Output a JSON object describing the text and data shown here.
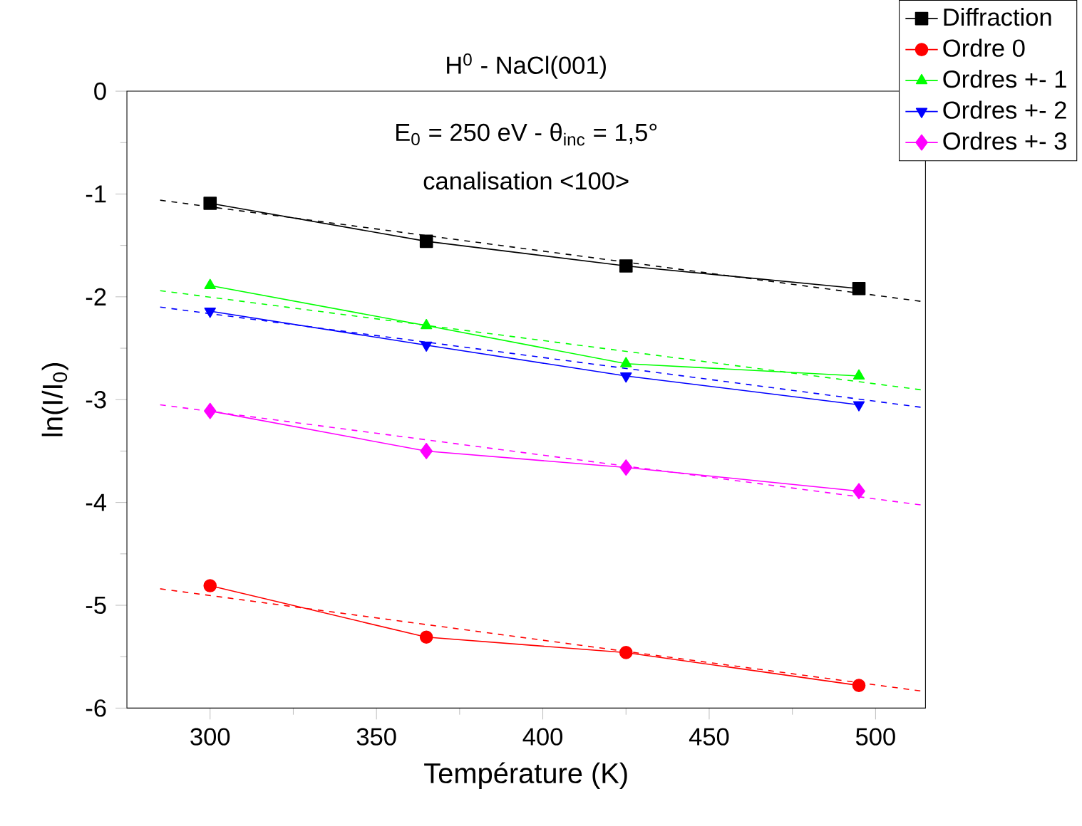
{
  "chart_data": {
    "type": "line",
    "title": "H$^{0}$ - NaCl(001)",
    "subtitle": "E$_{0}$ = 250 eV - θ$_{inc}$ = 1,5°",
    "annotations": [
      "canalisation <100>"
    ],
    "xlabel": "Température (K)",
    "ylabel": "ln(I/I$_{0}$)",
    "xlim": [
      275,
      515
    ],
    "ylim": [
      -6,
      0
    ],
    "xticks": [
      300,
      350,
      400,
      450,
      500
    ],
    "yticks": [
      -6,
      -5,
      -4,
      -3,
      -2,
      -1,
      0
    ],
    "legend": "top right",
    "grid": false,
    "series": [
      {
        "name": "Diffraction",
        "color": "#000000",
        "marker": "square",
        "line_style": "solid",
        "x": [
          300,
          365,
          425,
          495
        ],
        "values": [
          -1.09,
          -1.46,
          -1.7,
          -1.92
        ]
      },
      {
        "name": "Ordre 0",
        "color": "#ff0000",
        "marker": "circle",
        "line_style": "solid",
        "x": [
          300,
          365,
          425,
          495
        ],
        "values": [
          -4.81,
          -5.31,
          -5.46,
          -5.78
        ]
      },
      {
        "name": "Ordres +- 1",
        "color": "#00ff00",
        "marker": "triangle",
        "line_style": "solid",
        "x": [
          300,
          365,
          425,
          495
        ],
        "values": [
          -1.89,
          -2.28,
          -2.65,
          -2.77
        ]
      },
      {
        "name": "Ordres +- 2",
        "color": "#0000ff",
        "marker": "triangle-down",
        "line_style": "solid",
        "x": [
          300,
          365,
          425,
          495
        ],
        "values": [
          -2.14,
          -2.47,
          -2.77,
          -3.05
        ]
      },
      {
        "name": "Ordres +- 3",
        "color": "#ff00ff",
        "marker": "diamond",
        "line_style": "solid",
        "x": [
          300,
          365,
          425,
          495
        ],
        "values": [
          -3.11,
          -3.5,
          -3.66,
          -3.89
        ]
      },
      {
        "color": "#000000",
        "marker": "none",
        "line_style": "dashed",
        "x": [
          285,
          515
        ],
        "values": [
          -1.06,
          -2.05
        ]
      },
      {
        "color": "#ff0000",
        "marker": "none",
        "line_style": "dashed",
        "x": [
          285,
          515
        ],
        "values": [
          -4.84,
          -5.84
        ]
      },
      {
        "color": "#00ff00",
        "marker": "none",
        "line_style": "dashed",
        "x": [
          285,
          515
        ],
        "values": [
          -1.94,
          -2.91
        ]
      },
      {
        "color": "#0000ff",
        "marker": "none",
        "line_style": "dashed",
        "x": [
          285,
          515
        ],
        "values": [
          -2.1,
          -3.08
        ]
      },
      {
        "color": "#ff00ff",
        "marker": "none",
        "line_style": "dashed",
        "x": [
          285,
          515
        ],
        "values": [
          -3.05,
          -4.03
        ]
      }
    ]
  }
}
